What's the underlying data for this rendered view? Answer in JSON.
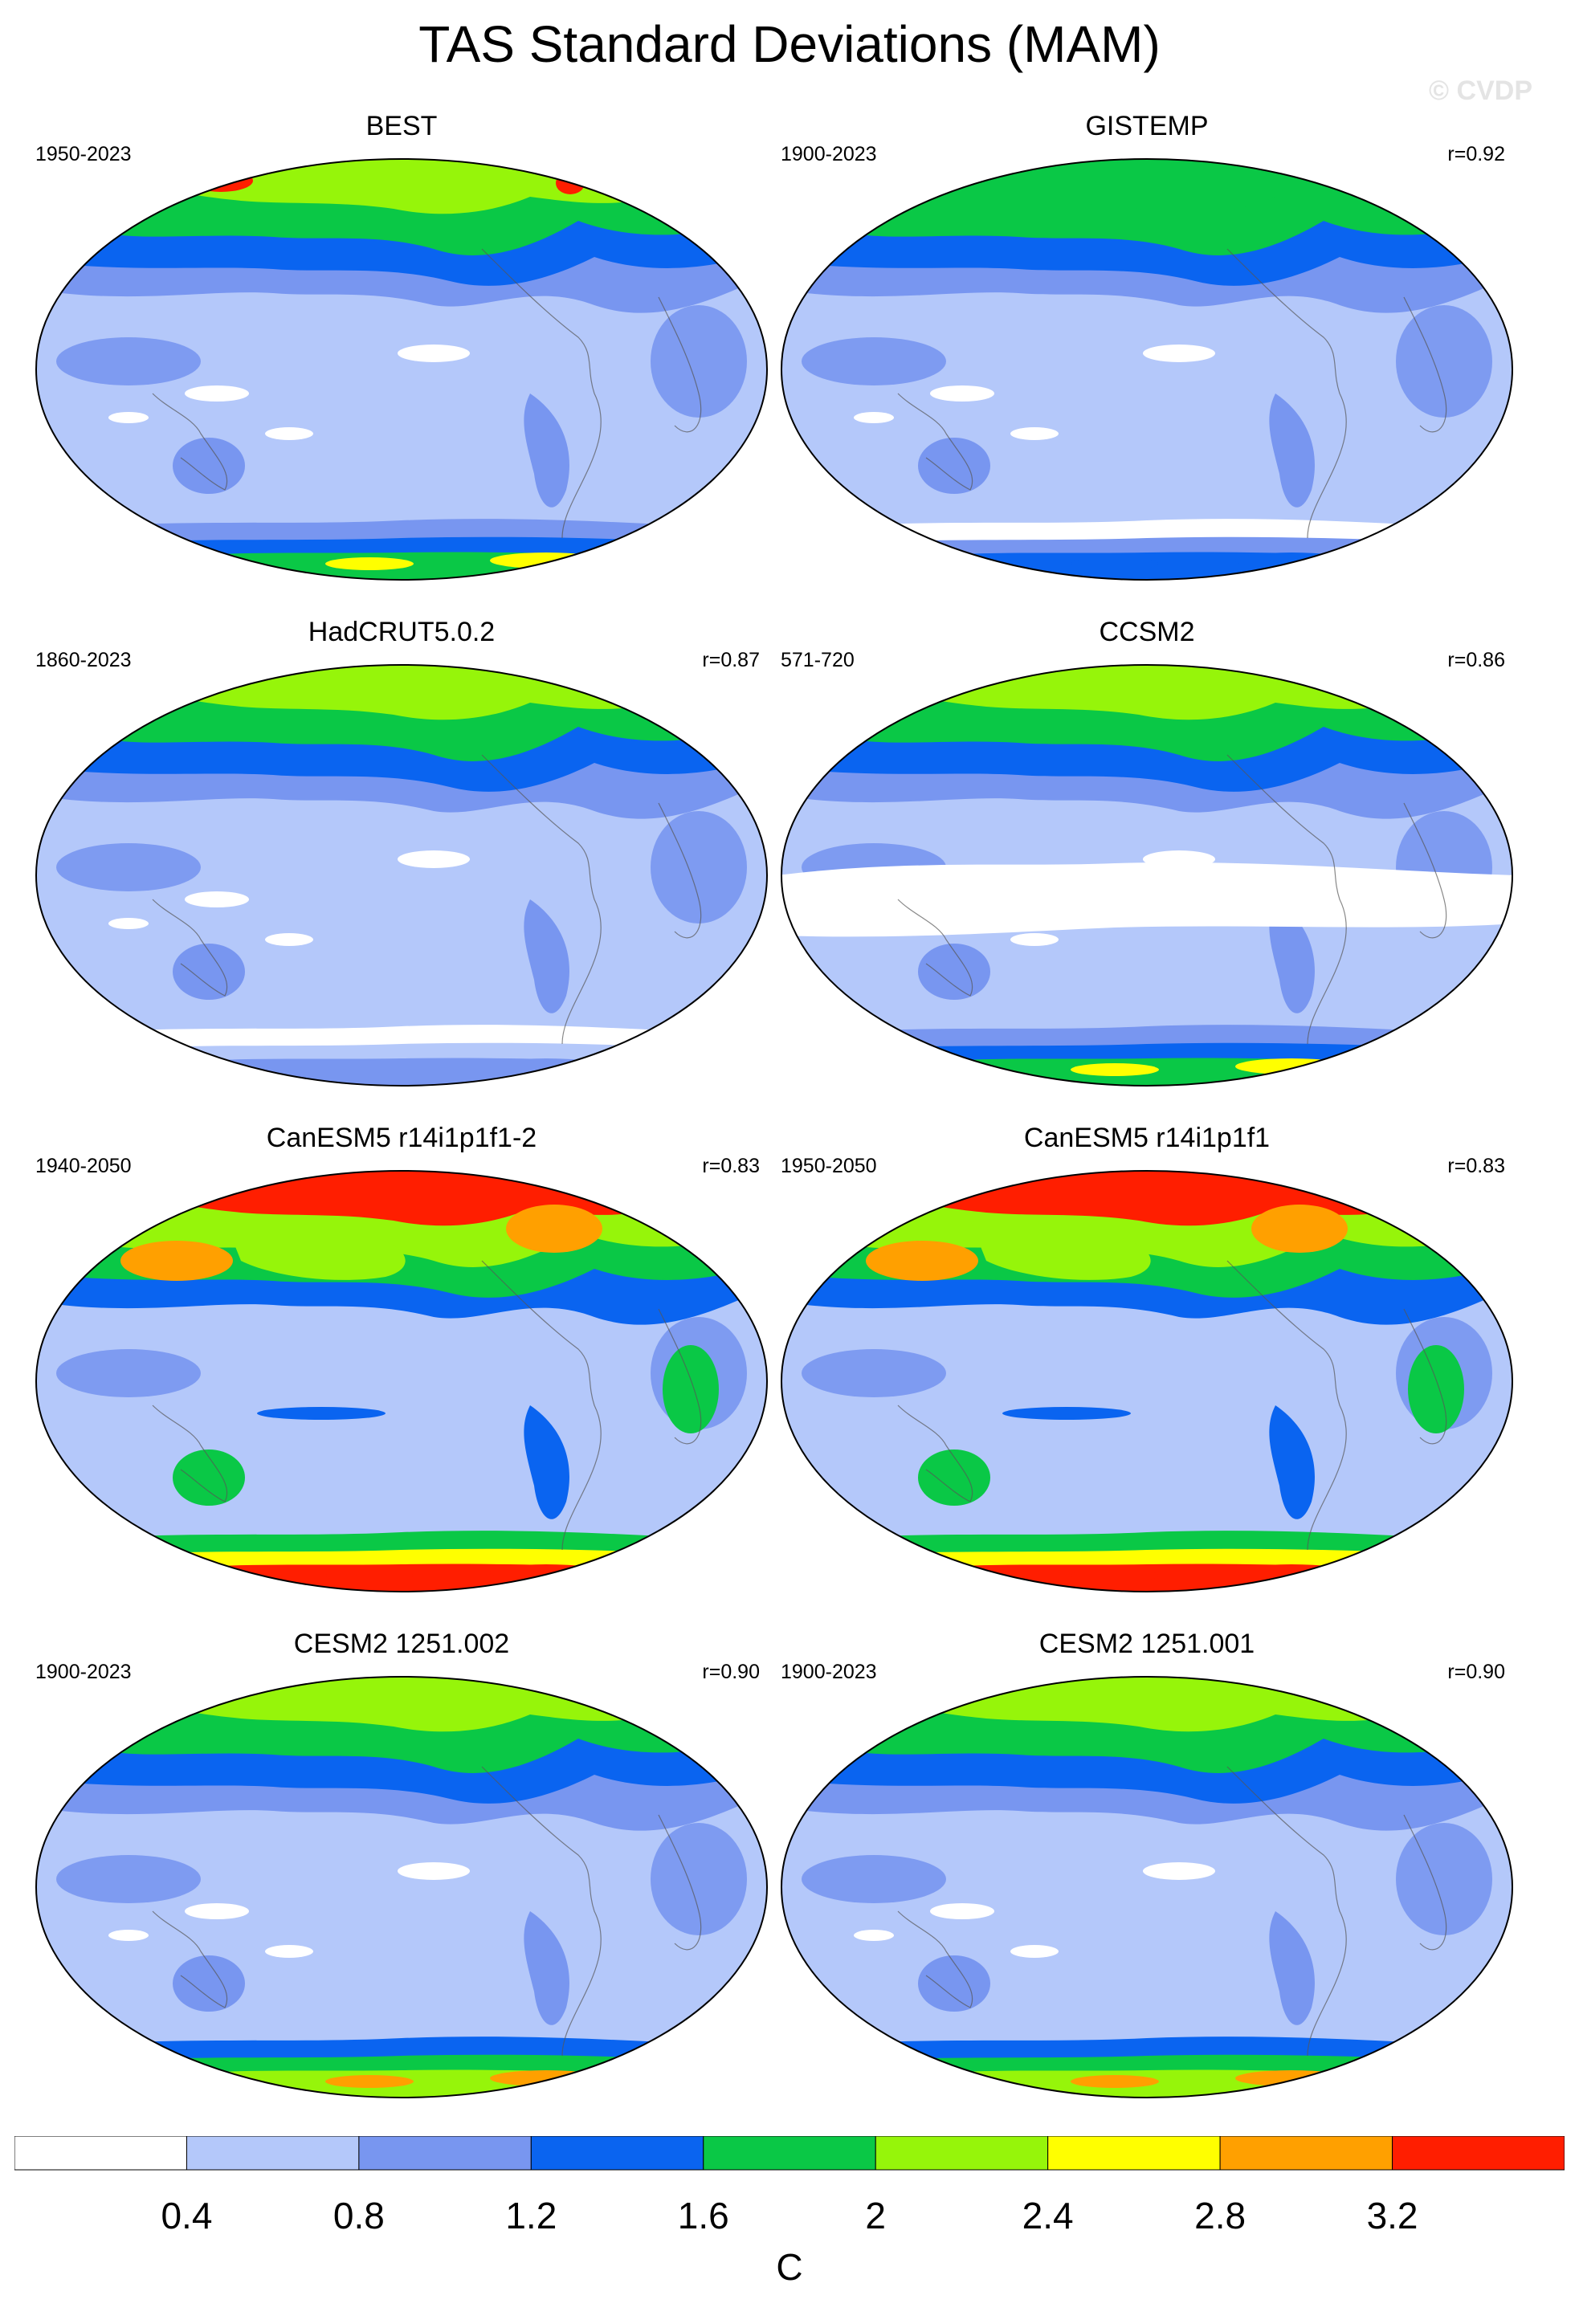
{
  "title": "TAS Standard Deviations (MAM)",
  "watermark": "© CVDP",
  "units": "C",
  "colorbar": {
    "colors": [
      "#ffffff",
      "#b4c8fa",
      "#7896f0",
      "#0a64f0",
      "#0ac846",
      "#96f50a",
      "#ffff00",
      "#ffa000",
      "#ff1e00"
    ],
    "labels": [
      "0.4",
      "0.8",
      "1.2",
      "1.6",
      "2",
      "2.4",
      "2.8",
      "3.2"
    ]
  },
  "panels": [
    {
      "title": "BEST",
      "period": "1950-2023",
      "corr": "",
      "style": "obs_hot"
    },
    {
      "title": "GISTEMP",
      "period": "1900-2023",
      "corr": "r=0.92",
      "style": "obs_green"
    },
    {
      "title": "HadCRUT5.0.2",
      "period": "1860-2023",
      "corr": "r=0.87",
      "style": "had"
    },
    {
      "title": "CCSM2",
      "period": "571-720",
      "corr": "r=0.86",
      "style": "ccsm"
    },
    {
      "title": "CanESM5 r14i1p1f1-2",
      "period": "1940-2050",
      "corr": "r=0.83",
      "style": "can"
    },
    {
      "title": "CanESM5 r14i1p1f1",
      "period": "1950-2050",
      "corr": "r=0.83",
      "style": "can"
    },
    {
      "title": "CESM2 1251.002",
      "period": "1900-2023",
      "corr": "r=0.90",
      "style": "cesm"
    },
    {
      "title": "CESM2 1251.001",
      "period": "1900-2023",
      "corr": "r=0.90",
      "style": "cesm"
    }
  ]
}
